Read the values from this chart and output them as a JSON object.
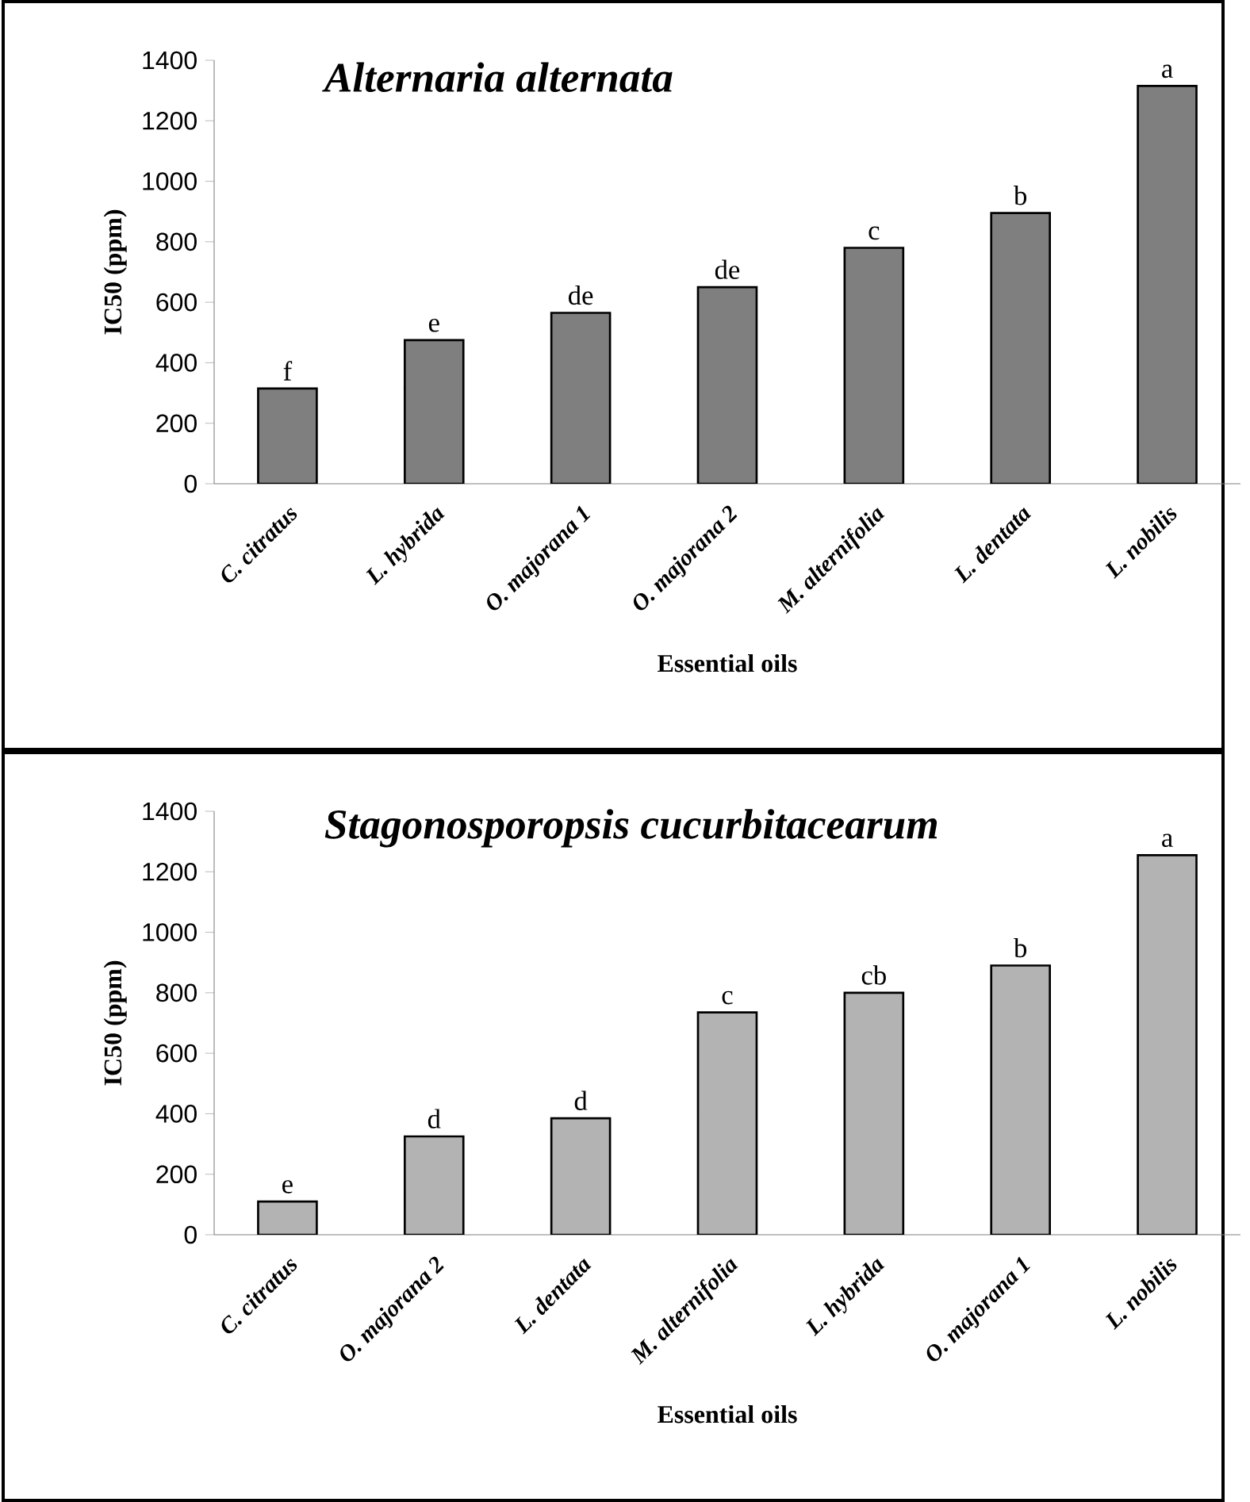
{
  "chart_data": [
    {
      "type": "bar",
      "title": "Alternaria alternata",
      "xlabel": "Essential oils",
      "ylabel": "IC50 (ppm)",
      "categories": [
        "C. citratus",
        "L. hybrida",
        "O. majorana 1",
        "O. majorana 2",
        "M. alternifolia",
        "L. dentata",
        "L. nobilis"
      ],
      "values": [
        315,
        475,
        565,
        650,
        780,
        895,
        1315
      ],
      "value_labels": [
        "f",
        "e",
        "de",
        "de",
        "c",
        "b",
        "a"
      ],
      "color": "#7f7f7f",
      "ylim": [
        0,
        1400
      ],
      "yticks": [
        0,
        200,
        400,
        600,
        800,
        1000,
        1200,
        1400
      ]
    },
    {
      "type": "bar",
      "title": "Stagonosporopsis cucurbitacearum",
      "xlabel": "Essential oils",
      "ylabel": "IC50 (ppm)",
      "categories": [
        "C. citratus",
        "O. majorana 2",
        "L. dentata",
        "M. alternifolia",
        "L. hybrida",
        "O. majorana 1",
        "L. nobilis"
      ],
      "values": [
        110,
        325,
        385,
        735,
        800,
        890,
        1255
      ],
      "value_labels": [
        "e",
        "d",
        "d",
        "c",
        "cb",
        "b",
        "a"
      ],
      "color": "#b3b3b3",
      "ylim": [
        0,
        1400
      ],
      "yticks": [
        0,
        200,
        400,
        600,
        800,
        1000,
        1200,
        1400
      ]
    }
  ]
}
